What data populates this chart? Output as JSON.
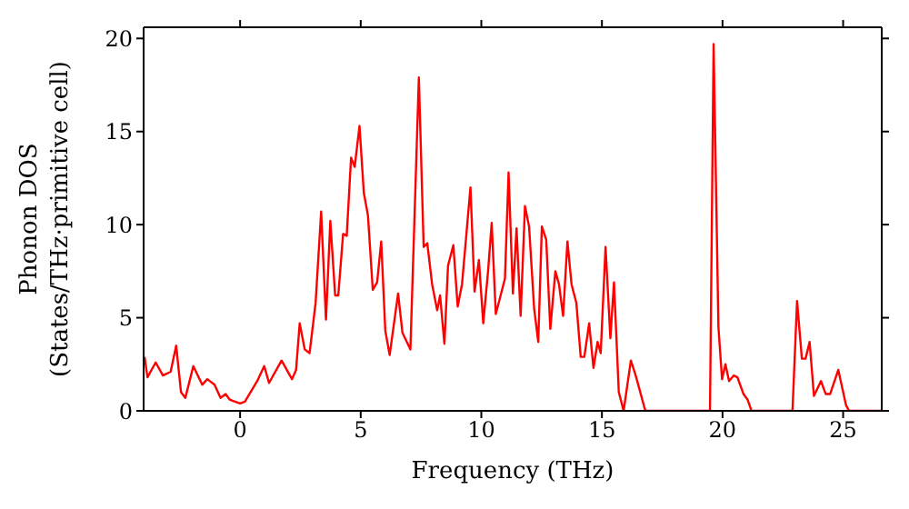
{
  "chart_data": {
    "type": "line",
    "xlabel": "Frequency (THz)",
    "ylabel": "Phonon DOS\n(States/THz·primitive cell)",
    "x": [
      -3.96,
      -3.84,
      -3.5,
      -3.2,
      -2.88,
      -2.65,
      -2.45,
      -2.27,
      -1.94,
      -1.57,
      -1.36,
      -1.06,
      -0.81,
      -0.6,
      -0.43,
      0,
      0.2,
      0.71,
      1.0,
      1.2,
      1.72,
      2.15,
      2.32,
      2.47,
      2.68,
      2.88,
      3.13,
      3.36,
      3.56,
      3.74,
      3.94,
      4.07,
      4.27,
      4.42,
      4.6,
      4.75,
      4.95,
      5.13,
      5.3,
      5.5,
      5.68,
      5.85,
      6.02,
      6.2,
      6.55,
      6.73,
      7.06,
      7.41,
      7.61,
      7.76,
      7.96,
      8.17,
      8.29,
      8.47,
      8.62,
      8.84,
      9.02,
      9.2,
      9.55,
      9.72,
      9.9,
      10.08,
      10.28,
      10.43,
      10.6,
      10.78,
      10.98,
      11.13,
      11.31,
      11.46,
      11.63,
      11.81,
      11.98,
      12.19,
      12.36,
      12.51,
      12.69,
      12.86,
      13.07,
      13.22,
      13.39,
      13.57,
      13.74,
      13.94,
      14.12,
      14.27,
      14.47,
      14.65,
      14.82,
      14.95,
      15.15,
      15.35,
      15.5,
      15.7,
      15.9,
      16.2,
      16.4,
      16.8,
      19.48,
      19.63,
      19.83,
      19.98,
      20.12,
      20.27,
      20.47,
      20.62,
      20.87,
      21.04,
      21.2,
      22.9,
      23.09,
      23.29,
      23.44,
      23.61,
      23.79,
      24.08,
      24.28,
      24.46,
      24.8,
      25.12,
      25.25,
      26.6
    ],
    "series": [
      {
        "color": "#ff0000",
        "values": [
          2.9,
          1.8,
          2.6,
          1.9,
          2.1,
          3.5,
          1.0,
          0.7,
          2.4,
          1.4,
          1.7,
          1.4,
          0.7,
          0.9,
          0.6,
          0.4,
          0.5,
          1.6,
          2.4,
          1.5,
          2.7,
          1.7,
          2.2,
          4.7,
          3.3,
          3.1,
          5.8,
          10.7,
          4.9,
          10.2,
          6.2,
          6.2,
          9.5,
          9.4,
          13.6,
          13.1,
          15.3,
          11.7,
          10.5,
          6.5,
          6.9,
          9.1,
          4.3,
          3.0,
          6.3,
          4.2,
          3.3,
          17.9,
          8.8,
          9.0,
          6.8,
          5.4,
          6.2,
          3.6,
          7.8,
          8.9,
          5.6,
          6.8,
          12.0,
          6.4,
          8.1,
          4.7,
          7.5,
          10.1,
          5.2,
          6.1,
          7.1,
          12.8,
          6.3,
          9.8,
          5.1,
          11.0,
          9.9,
          5.5,
          3.7,
          9.9,
          9.2,
          4.4,
          7.5,
          6.8,
          5.1,
          9.1,
          6.8,
          5.8,
          2.9,
          2.9,
          4.7,
          2.3,
          3.7,
          3.1,
          8.8,
          3.9,
          6.9,
          1.0,
          0,
          2.7,
          1.9,
          0,
          0,
          19.7,
          4.5,
          1.7,
          2.5,
          1.6,
          1.9,
          1.8,
          0.9,
          0.6,
          0,
          0,
          5.9,
          2.8,
          2.8,
          3.7,
          0.8,
          1.6,
          0.9,
          0.9,
          2.2,
          0.3,
          0,
          0
        ]
      }
    ],
    "xlim": [
      -4,
      26.6
    ],
    "xticks": [
      0,
      5,
      10,
      15,
      20,
      25
    ],
    "ylim": [
      0,
      20.6
    ],
    "yticks": [
      0,
      5,
      10,
      15,
      20
    ],
    "marker": "none",
    "line_style": "solid"
  }
}
